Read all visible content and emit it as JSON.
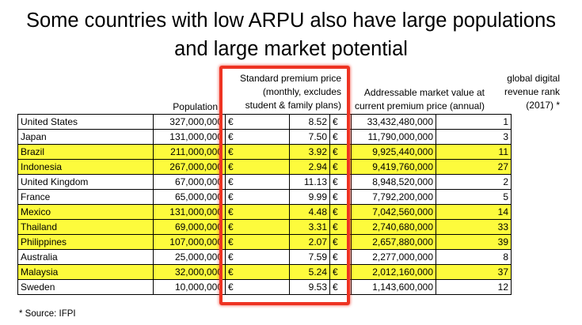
{
  "title_line1": "Some countries with low ARPU also have large populations",
  "title_line2": "and large market potential",
  "headers": {
    "population": "Population",
    "price_line1": "Standard premium price",
    "price_line2": "(monthly, excludes",
    "price_line3": "student & family plans)",
    "market_line1": "Addressable market value at",
    "market_line2": "current premium price (annual)",
    "rank_line1": "global digital",
    "rank_line2": "revenue rank",
    "rank_line3": "(2017) *"
  },
  "currency_symbol": "€",
  "rows": [
    {
      "country": "United States",
      "population": "327,000,000",
      "price": "8.52",
      "market": "33,432,480,000",
      "rank": "1",
      "highlighted": false
    },
    {
      "country": "Japan",
      "population": "131,000,000",
      "price": "7.50",
      "market": "11,790,000,000",
      "rank": "3",
      "highlighted": false
    },
    {
      "country": "Brazil",
      "population": "211,000,000",
      "price": "3.92",
      "market": "9,925,440,000",
      "rank": "11",
      "highlighted": true
    },
    {
      "country": "Indonesia",
      "population": "267,000,000",
      "price": "2.94",
      "market": "9,419,760,000",
      "rank": "27",
      "highlighted": true
    },
    {
      "country": "United Kingdom",
      "population": "67,000,000",
      "price": "11.13",
      "market": "8,948,520,000",
      "rank": "2",
      "highlighted": false
    },
    {
      "country": "France",
      "population": "65,000,000",
      "price": "9.99",
      "market": "7,792,200,000",
      "rank": "5",
      "highlighted": false
    },
    {
      "country": "Mexico",
      "population": "131,000,000",
      "price": "4.48",
      "market": "7,042,560,000",
      "rank": "14",
      "highlighted": true
    },
    {
      "country": "Thailand",
      "population": "69,000,000",
      "price": "3.31",
      "market": "2,740,680,000",
      "rank": "33",
      "highlighted": true
    },
    {
      "country": "Philippines",
      "population": "107,000,000",
      "price": "2.07",
      "market": "2,657,880,000",
      "rank": "39",
      "highlighted": true
    },
    {
      "country": "Australia",
      "population": "25,000,000",
      "price": "7.59",
      "market": "2,277,000,000",
      "rank": "8",
      "highlighted": false
    },
    {
      "country": "Malaysia",
      "population": "32,000,000",
      "price": "5.24",
      "market": "2,012,160,000",
      "rank": "37",
      "highlighted": true
    },
    {
      "country": "Sweden",
      "population": "10,000,000",
      "price": "9.53",
      "market": "1,143,600,000",
      "rank": "12",
      "highlighted": false
    }
  ],
  "footnote": "* Source: IFPI",
  "colors": {
    "row_highlight": "#fdfb3c",
    "price_column_outline": "#ee3322"
  }
}
